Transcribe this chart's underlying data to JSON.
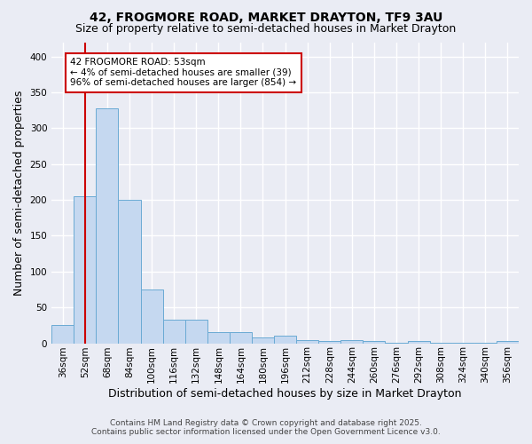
{
  "title": "42, FROGMORE ROAD, MARKET DRAYTON, TF9 3AU",
  "subtitle": "Size of property relative to semi-detached houses in Market Drayton",
  "xlabel": "Distribution of semi-detached houses by size in Market Drayton",
  "ylabel": "Number of semi-detached properties",
  "footer_line1": "Contains HM Land Registry data © Crown copyright and database right 2025.",
  "footer_line2": "Contains public sector information licensed under the Open Government Licence v3.0.",
  "categories": [
    "36sqm",
    "52sqm",
    "68sqm",
    "84sqm",
    "100sqm",
    "116sqm",
    "132sqm",
    "148sqm",
    "164sqm",
    "180sqm",
    "196sqm",
    "212sqm",
    "228sqm",
    "244sqm",
    "260sqm",
    "276sqm",
    "292sqm",
    "308sqm",
    "324sqm",
    "340sqm",
    "356sqm"
  ],
  "values": [
    25,
    205,
    328,
    200,
    75,
    33,
    33,
    16,
    15,
    8,
    10,
    5,
    3,
    4,
    3,
    1,
    3,
    1,
    1,
    1,
    3
  ],
  "bar_color": "#c5d8f0",
  "bar_edge_color": "#6aaad4",
  "background_color": "#eaecf4",
  "grid_color": "#ffffff",
  "annotation_text": "42 FROGMORE ROAD: 53sqm\n← 4% of semi-detached houses are smaller (39)\n96% of semi-detached houses are larger (854) →",
  "annotation_box_color": "#ffffff",
  "annotation_box_edge_color": "#cc0000",
  "red_line_x": 1,
  "ylim": [
    0,
    420
  ],
  "yticks": [
    0,
    50,
    100,
    150,
    200,
    250,
    300,
    350,
    400
  ],
  "title_fontsize": 10,
  "subtitle_fontsize": 9,
  "axis_label_fontsize": 9,
  "tick_fontsize": 7.5,
  "annotation_fontsize": 7.5,
  "footer_fontsize": 6.5
}
